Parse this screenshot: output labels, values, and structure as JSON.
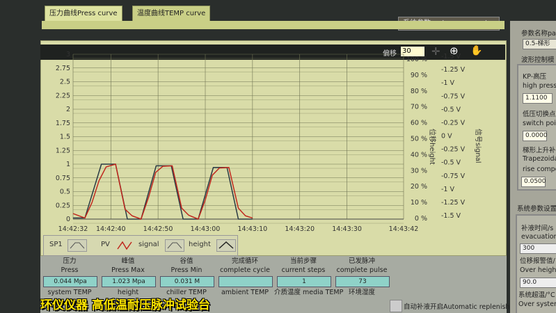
{
  "tabs": [
    {
      "label": "压力曲线Press curve"
    },
    {
      "label": "温度曲线TEMP curve"
    },
    {
      "label": "系统参数system parameter"
    }
  ],
  "toolbar": {
    "offset_label": "偏移",
    "offset_value": "30",
    "icons": [
      "crosshair-icon",
      "zoom-icon",
      "pan-hand-icon"
    ]
  },
  "chart_data": {
    "type": "line",
    "ylim": [
      0,
      3
    ],
    "yticks": [
      "0",
      "0.25",
      "0.5",
      "0.75",
      "1",
      "1.25",
      "1.5",
      "1.75",
      "2",
      "2.25",
      "2.5",
      "2.75",
      "3"
    ],
    "xlim": [
      "14:42:32",
      "14:43:42"
    ],
    "xticks": [
      "14:42:32",
      "14:42:40",
      "14:42:50",
      "14:43:00",
      "14:43:10",
      "14:43:20",
      "14:43:30",
      "14:43:42"
    ],
    "right_axis_height": {
      "label": "位移height",
      "ticks": [
        "0 %",
        "10 %",
        "20 %",
        "30 %",
        "40 %",
        "50 %",
        "60 %",
        "70 %",
        "80 %",
        "90 %",
        "100 %"
      ]
    },
    "right_axis_signal": {
      "label": "信号signal",
      "ticks": [
        "-1.5 V",
        "-1.25 V",
        "-1 V",
        "-0.75 V",
        "-0.5 V",
        "-0.25 V",
        "0 V",
        "-0.25 V",
        "-0.5 V",
        "-0.75 V",
        "-1 V",
        "-1.25 V",
        "-1.5 V"
      ]
    },
    "grid": true,
    "legend_position": "bottom",
    "series": [
      {
        "name": "SP1",
        "color": "#2a3a44",
        "x": [
          "14:42:32",
          "14:42:34.5",
          "14:42:38",
          "14:42:41",
          "14:42:43.5",
          "14:42:46.4",
          "14:42:49.6",
          "14:42:52.8",
          "14:42:55.3",
          "14:42:58.5",
          "14:43:01.7",
          "14:43:04.6",
          "14:43:07",
          "14:43:10"
        ],
        "y": [
          0.02,
          0.02,
          1.0,
          1.0,
          0.0,
          0.0,
          0.97,
          0.97,
          0.0,
          0.0,
          0.94,
          0.94,
          0.0,
          0.0
        ]
      },
      {
        "name": "PV",
        "color": "#c0281e",
        "x": [
          "14:42:32",
          "14:42:34.5",
          "14:42:36",
          "14:42:37.5",
          "14:42:39",
          "14:42:41",
          "14:42:43",
          "14:42:44.5",
          "14:42:46.4",
          "14:42:48",
          "14:42:49.5",
          "14:42:51",
          "14:42:53",
          "14:42:55",
          "14:42:56.5",
          "14:42:58.5",
          "14:43:00",
          "14:43:01.5",
          "14:43:03",
          "14:43:05",
          "14:43:07",
          "14:43:08.5",
          "14:43:10"
        ],
        "y": [
          0.1,
          0.02,
          0.3,
          0.7,
          0.95,
          1.0,
          0.18,
          0.06,
          0.0,
          0.4,
          0.85,
          0.96,
          0.97,
          0.2,
          0.07,
          0.0,
          0.35,
          0.8,
          0.93,
          0.94,
          0.2,
          0.06,
          0.02
        ]
      }
    ]
  },
  "legend": [
    {
      "label": "SP1"
    },
    {
      "label": "PV"
    },
    {
      "label": "signal"
    },
    {
      "label": "height"
    }
  ],
  "bottom": {
    "items": [
      {
        "zh": "压力",
        "en": "Press",
        "value": "0.044 Mpa"
      },
      {
        "zh": "峰值",
        "en": "Press Max",
        "value": "1.023 Mpa"
      },
      {
        "zh": "谷值",
        "en": "Press Min",
        "value": "0.031 M"
      },
      {
        "zh": "完成循环",
        "en": "complete cycle",
        "value": ""
      },
      {
        "zh": "当前步骤",
        "en": "current steps",
        "value": "1"
      },
      {
        "zh": "已发脉冲",
        "en": "complete pulse",
        "value": "73"
      }
    ],
    "row2": [
      "system TEMP",
      "height",
      "chiller TEMP",
      "ambient TEMP",
      "介质温度 media TEMP",
      "环境湿度"
    ],
    "auto_replenish": "自动补液开启Automatic replenish"
  },
  "right": {
    "param_name_label": "参数名称pa",
    "param_value": "0.5-梯形",
    "wave_ctrl": "波形控制模",
    "kp_zh": "KP-高压",
    "kp_en": "high press",
    "kp_value": "1.1100",
    "switch_zh": "低压切换点",
    "switch_en": "switch poi",
    "switch_value": "0.0000",
    "trap_zh": "梯形上升补",
    "trap_en1": "Trapezoida",
    "trap_en2": "rise compe",
    "trap_value": "0.0500",
    "sys_settings": "系统参数设置",
    "evac_zh": "补液时间/s",
    "evac_en": "evacuation",
    "evac_value": "300",
    "over_h_zh": "位移报警值/",
    "over_h_en": "Over heigh",
    "over_h_value": "90.0",
    "over_t_zh": "系统超温/°C",
    "over_t_en": "Over system"
  },
  "caption": "环仪仪器 高低温耐压脉冲试验台"
}
